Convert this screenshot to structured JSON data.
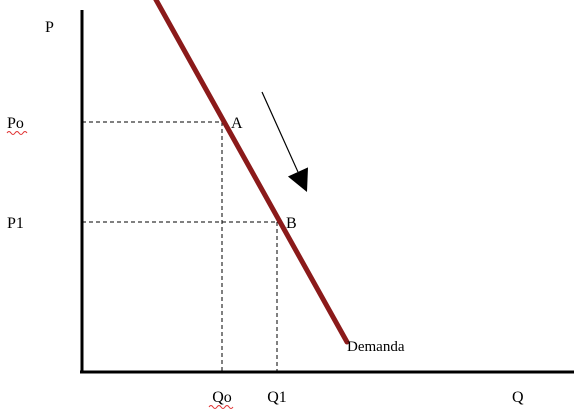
{
  "chart_data": {
    "type": "line",
    "title": "",
    "xlabel": "Q",
    "ylabel": "P",
    "grid": false,
    "series": [
      {
        "name": "Demanda",
        "x": [
          0.5,
          5.3
        ],
        "y": [
          9.2,
          0.6
        ]
      }
    ],
    "points": [
      {
        "label": "A",
        "x": 2.8,
        "y": 5.0,
        "x_tick": "Qo",
        "y_tick": "Po"
      },
      {
        "label": "B",
        "x": 3.9,
        "y": 3.0,
        "x_tick": "Q1",
        "y_tick": "P1"
      }
    ],
    "annotations": [
      {
        "type": "arrow",
        "from": [
          3.6,
          5.6
        ],
        "to": [
          4.5,
          3.6
        ]
      }
    ],
    "xlim": [
      -3.3,
      8.8
    ],
    "ylim": [
      0,
      10
    ],
    "colors": {
      "curve": "#8b1a1a",
      "axes": "#000000",
      "guides": "#000000",
      "arrow": "#000000"
    }
  }
}
